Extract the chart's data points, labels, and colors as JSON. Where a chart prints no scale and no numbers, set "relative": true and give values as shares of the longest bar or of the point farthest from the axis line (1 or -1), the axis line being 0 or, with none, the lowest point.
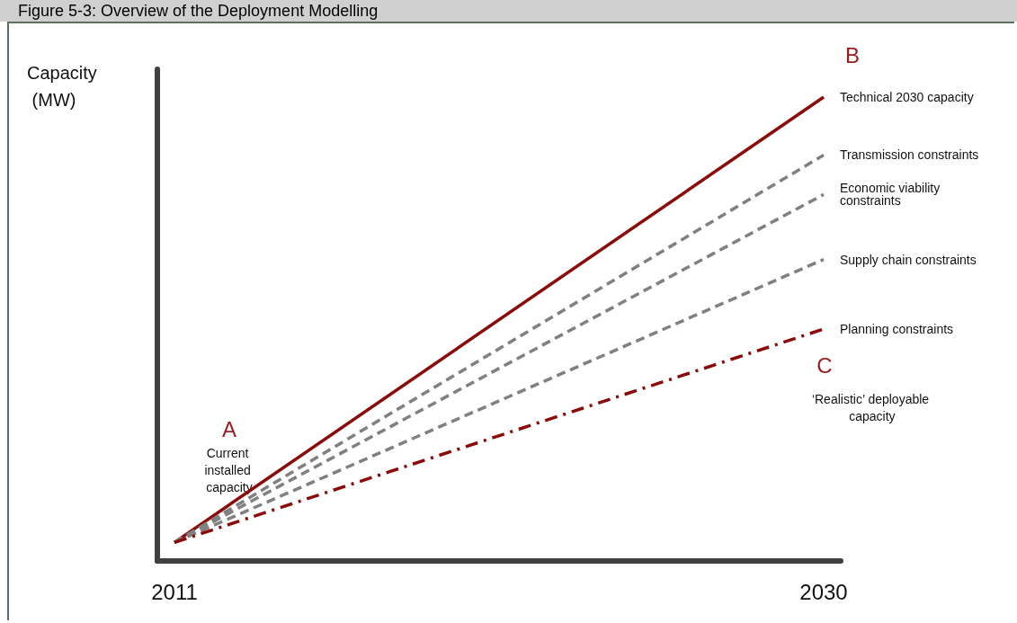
{
  "chart_data": {
    "type": "line",
    "title": "Figure 5-3: Overview of the Deployment Modelling",
    "ylabel": "Capacity (MW)",
    "relative": true,
    "x": [
      2011,
      2030
    ],
    "xlim": [
      2010.5,
      2030.5
    ],
    "xticks": [
      2011,
      2030
    ],
    "grid": false,
    "legend": false,
    "marker": "none",
    "series": [
      {
        "name": "Technical 2030 capacity",
        "color": "#8b0a0a",
        "line_style": "solid",
        "values": [
          0.04,
          1
        ]
      },
      {
        "name": "Transmission constraints",
        "color": "#808080",
        "line_style": "dashed",
        "values": [
          0.04,
          0.875
        ]
      },
      {
        "name": "Economic viability constraints",
        "color": "#808080",
        "line_style": "dashed",
        "values": [
          0.04,
          0.79
        ]
      },
      {
        "name": "Supply chain constraints",
        "color": "#808080",
        "line_style": "dashed",
        "values": [
          0.04,
          0.65
        ]
      },
      {
        "name": "Planning constraints",
        "color": "#8b0a0a",
        "line_style": "dashdot",
        "values": [
          0.04,
          0.5
        ]
      }
    ],
    "annotations": [
      "A",
      "Current installed capacity",
      "B",
      "C",
      "‘Realistic’ deployable capacity"
    ]
  }
}
